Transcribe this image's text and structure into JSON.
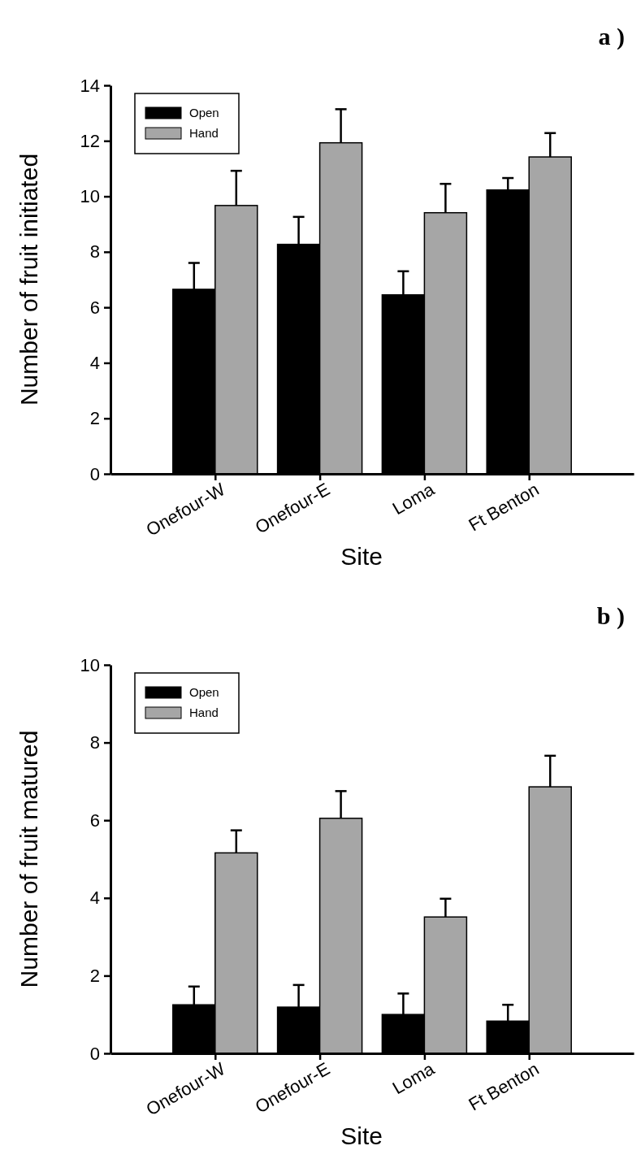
{
  "chart_data": [
    {
      "type": "bar",
      "title": "a )",
      "xlabel": "Site",
      "ylabel": "Number of fruit initiated",
      "categories": [
        "Onefour-W",
        "Onefour-E",
        "Loma",
        "Ft Benton"
      ],
      "series": [
        {
          "name": "Open",
          "color": "#000000",
          "values": [
            6.65,
            8.27,
            6.45,
            10.23
          ],
          "errors": [
            0.95,
            0.99,
            0.85,
            0.43
          ]
        },
        {
          "name": "Hand",
          "color": "#a6a6a6",
          "values": [
            9.67,
            11.93,
            9.41,
            11.42
          ],
          "errors": [
            1.25,
            1.21,
            1.04,
            0.86
          ]
        }
      ],
      "ylim": [
        0,
        14
      ],
      "yticks": [
        0,
        2,
        4,
        6,
        8,
        10,
        12,
        14
      ],
      "legend": "top left"
    },
    {
      "type": "bar",
      "title": "b )",
      "xlabel": "Site",
      "ylabel": "Number of fruit matured",
      "categories": [
        "Onefour-W",
        "Onefour-E",
        "Loma",
        "Ft Benton"
      ],
      "series": [
        {
          "name": "Open",
          "color": "#000000",
          "values": [
            1.25,
            1.19,
            1.0,
            0.83
          ],
          "errors": [
            0.47,
            0.57,
            0.54,
            0.42
          ]
        },
        {
          "name": "Hand",
          "color": "#a6a6a6",
          "values": [
            5.16,
            6.05,
            3.51,
            6.86
          ],
          "errors": [
            0.58,
            0.7,
            0.47,
            0.8
          ]
        }
      ],
      "ylim": [
        0,
        10
      ],
      "yticks": [
        0,
        2,
        4,
        6,
        8,
        10
      ],
      "legend": "top left"
    }
  ]
}
